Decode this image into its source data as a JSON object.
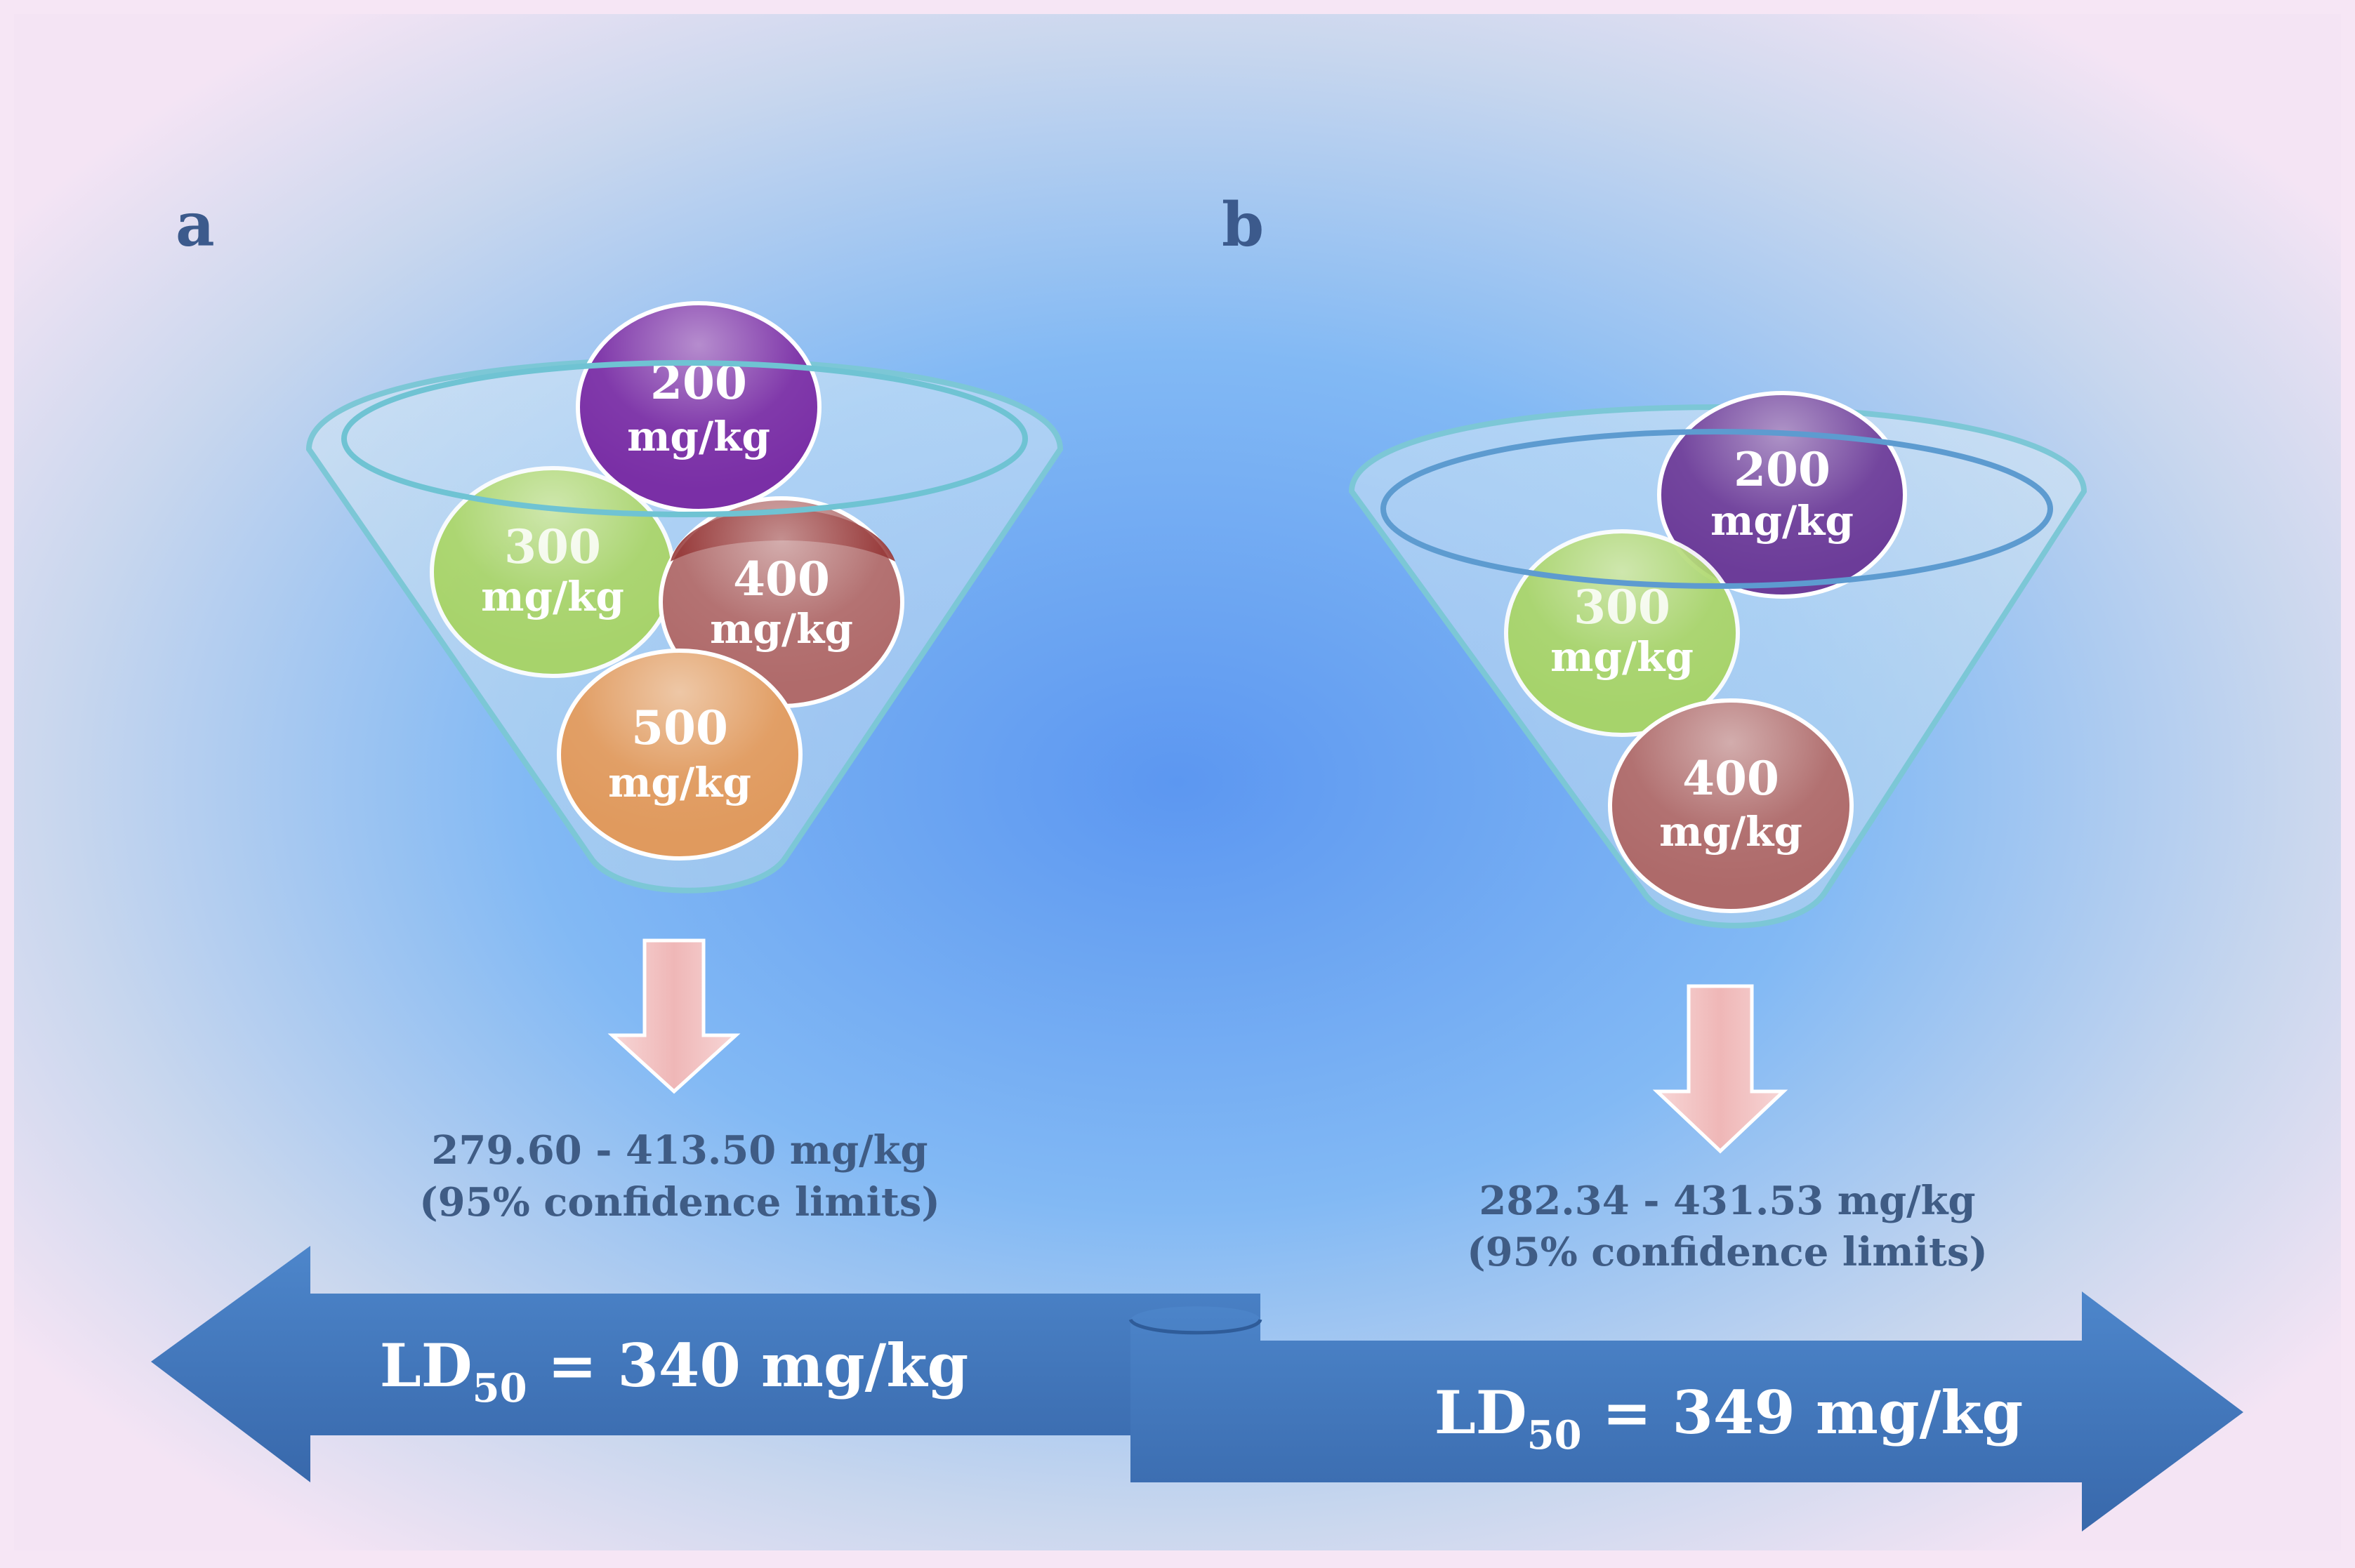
{
  "panels": [
    {
      "label": "a",
      "doses": [
        {
          "value": "200",
          "unit": "mg/kg",
          "color": "#7a2fa6"
        },
        {
          "value": "300",
          "unit": "mg/kg",
          "color": "#9fd050"
        },
        {
          "value": "400",
          "unit": "mg/kg",
          "color": "#9c3a3a"
        },
        {
          "value": "500",
          "unit": "mg/kg",
          "color": "#e08a4c"
        }
      ],
      "confidence_range": "279.60 - 413.50 mg/kg",
      "confidence_note": "(95% confidence limits)",
      "ld50": {
        "prefix": "LD",
        "subscript": "50",
        "rest": " = 340 mg/kg"
      }
    },
    {
      "label": "b",
      "doses": [
        {
          "value": "200",
          "unit": "mg/kg",
          "color": "#6c3c99"
        },
        {
          "value": "300",
          "unit": "mg/kg",
          "color": "#9fd050"
        },
        {
          "value": "400",
          "unit": "mg/kg",
          "color": "#a85f5f"
        }
      ],
      "confidence_range": "282.34 - 431.53 mg/kg",
      "confidence_note": "(95% confidence limits)",
      "ld50": {
        "prefix": "LD",
        "subscript": "50",
        "rest": " = 349 mg/kg"
      }
    }
  ],
  "colors": {
    "background_center": "#5f9cf2",
    "background_edge": "#f4e4f4",
    "band_arrow": "#3f77bd",
    "down_arrow": "#f2c2c2",
    "funnel_rim": "#6fc3d3",
    "text_blue": "#3f5c85"
  }
}
